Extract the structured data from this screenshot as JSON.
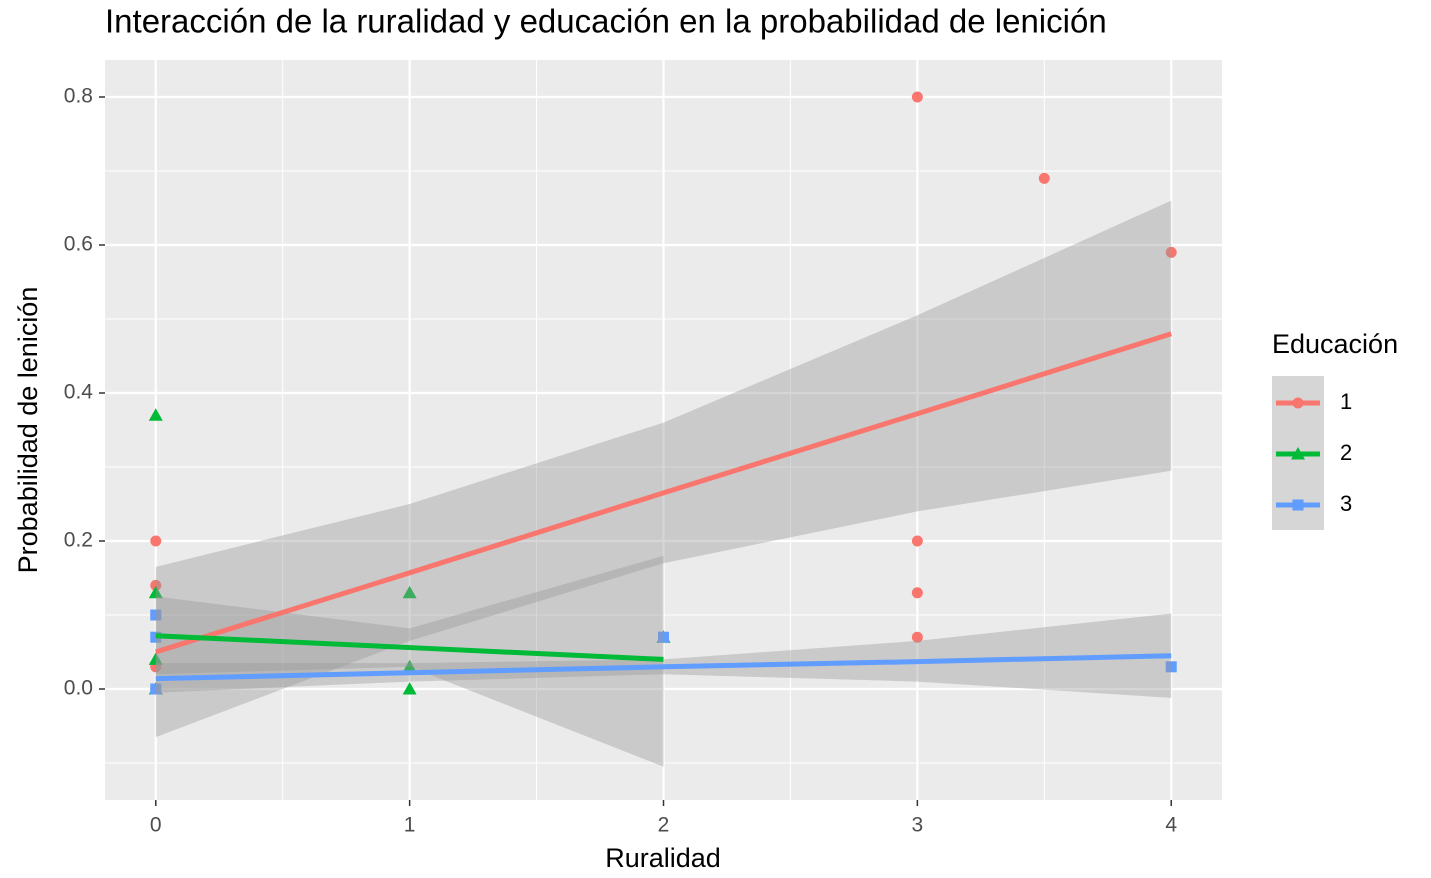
{
  "chart_data": {
    "type": "scatter",
    "title": "Interacción de la ruralidad y educación en la probabilidad de lenición",
    "x_label": "Ruralidad",
    "y_label": "Probabilidad de lenición",
    "legend_title": "Educación",
    "legend_position": "right",
    "xlim": [
      -0.2,
      4.2
    ],
    "ylim": [
      -0.15,
      0.85
    ],
    "xticks": [
      0,
      1,
      2,
      3,
      4
    ],
    "yticks": [
      {
        "value": 0,
        "label": "0.0"
      },
      0.2,
      0.4,
      0.6,
      0.8
    ],
    "minor_xticks": [
      0.5,
      1.5,
      2.5,
      3.5
    ],
    "minor_yticks": [
      -0.1,
      0.1,
      0.3,
      0.5,
      0.7
    ],
    "grid": true,
    "band_color": "#999999",
    "series": [
      {
        "name": "1",
        "color": "#F8766D",
        "marker": "circle",
        "x": [
          0,
          0,
          0,
          0,
          0,
          3,
          3.5,
          4,
          3,
          3,
          3
        ],
        "y": [
          0.2,
          0.14,
          0.1,
          0.03,
          0,
          0.8,
          0.69,
          0.59,
          0.2,
          0.13,
          0.07
        ],
        "fit": {
          "x": [
            0,
            1,
            2,
            3,
            4
          ],
          "y": [
            0.05,
            0.157,
            0.265,
            0.372,
            0.48
          ],
          "lower": [
            -0.065,
            0.065,
            0.17,
            0.24,
            0.295
          ],
          "upper": [
            0.165,
            0.25,
            0.36,
            0.505,
            0.66
          ]
        }
      },
      {
        "name": "2",
        "color": "#00BA38",
        "marker": "triangle",
        "x": [
          0,
          0,
          0,
          0,
          1,
          1,
          1,
          2
        ],
        "y": [
          0.37,
          0.13,
          0.04,
          0,
          0.13,
          0.03,
          0,
          0.07
        ],
        "fit": {
          "x": [
            0,
            1,
            2
          ],
          "y": [
            0.072,
            0.056,
            0.04
          ],
          "lower": [
            0.02,
            0.03,
            -0.105
          ],
          "upper": [
            0.125,
            0.082,
            0.18
          ]
        }
      },
      {
        "name": "3",
        "color": "#619CFF",
        "marker": "square",
        "x": [
          0,
          0,
          0,
          2,
          4
        ],
        "y": [
          0.1,
          0.07,
          0,
          0.07,
          0.03
        ],
        "fit": {
          "x": [
            0,
            1,
            2,
            3,
            4
          ],
          "y": [
            0.014,
            0.022,
            0.03,
            0.037,
            0.045
          ],
          "lower": [
            -0.005,
            0.01,
            0.02,
            0.01,
            -0.012
          ],
          "upper": [
            0.035,
            0.035,
            0.04,
            0.065,
            0.102
          ]
        }
      }
    ]
  }
}
